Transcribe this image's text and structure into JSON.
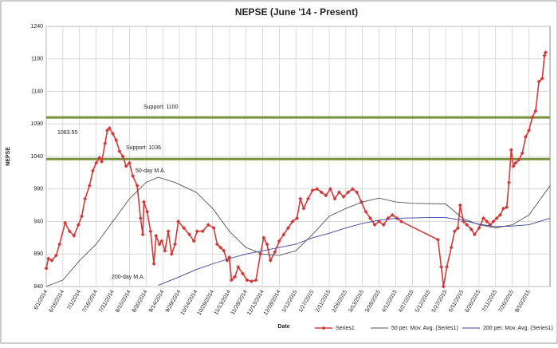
{
  "chart_data": {
    "type": "line",
    "title": "NEPSE (June '14 - Present)",
    "x_label": "Date",
    "y_label": "NEPSE",
    "xlim": [
      "6/1/2014",
      "8/29/2015"
    ],
    "xticks": [
      "6/1/2014",
      "6/16/2014",
      "7/1/2014",
      "7/16/2014",
      "7/31/2014",
      "8/15/2014",
      "8/30/2014",
      "9/14/2014",
      "9/29/2014",
      "10/14/2014",
      "10/29/2014",
      "11/13/2014",
      "11/28/2014",
      "12/13/2014",
      "12/28/2014",
      "1/12/2015",
      "1/27/2015",
      "2/11/2015",
      "2/26/2015",
      "3/13/2015",
      "3/28/2015",
      "4/12/2015",
      "4/27/2015",
      "5/12/2015",
      "5/27/2015",
      "6/11/2015",
      "6/26/2015",
      "7/11/2015",
      "7/26/2015",
      "8/10/2015"
    ],
    "ylim": [
      840,
      1240
    ],
    "yticks": [
      840,
      890,
      940,
      990,
      1040,
      1090,
      1140,
      1190,
      1240
    ],
    "grid": true,
    "legend": "bottom",
    "hlines": [
      {
        "value": 1100,
        "label": "Support: 1100",
        "color": "#76923c"
      },
      {
        "value": 1036,
        "label": "Support: 1036",
        "color": "#76923c"
      }
    ],
    "annotations": [
      "1083.55",
      "50-day M.A.",
      "200-day M.A."
    ],
    "series": [
      {
        "name": "Series1",
        "color": "#d23a3a",
        "x": [
          "6/1/2014",
          "6/3/2014",
          "6/6/2014",
          "6/10/2014",
          "6/13/2014",
          "6/18/2014",
          "6/22/2014",
          "6/26/2014",
          "6/30/2014",
          "7/3/2014",
          "7/6/2014",
          "7/10/2014",
          "7/13/2014",
          "7/16/2014",
          "7/19/2014",
          "7/21/2014",
          "7/24/2014",
          "7/26/2014",
          "7/28/2014",
          "7/31/2014",
          "8/3/2014",
          "8/6/2014",
          "8/9/2014",
          "8/12/2014",
          "8/15/2014",
          "8/18/2014",
          "8/22/2014",
          "8/25/2014",
          "8/27/2014",
          "8/28/2014",
          "8/31/2014",
          "9/3/2014",
          "9/6/2014",
          "9/8/2014",
          "9/11/2014",
          "9/13/2014",
          "9/16/2014",
          "9/19/2014",
          "9/22/2014",
          "9/25/2014",
          "9/28/2014",
          "10/3/2014",
          "10/8/2014",
          "10/12/2014",
          "10/15/2014",
          "10/20/2014",
          "10/25/2014",
          "10/30/2014",
          "11/2/2014",
          "11/5/2014",
          "11/8/2014",
          "11/11/2014",
          "11/13/2014",
          "11/15/2014",
          "11/18/2014",
          "11/21/2014",
          "11/25/2014",
          "11/29/2014",
          "12/3/2014",
          "12/7/2014",
          "12/11/2014",
          "12/14/2014",
          "12/17/2014",
          "12/20/2014",
          "12/24/2014",
          "12/28/2014",
          "1/1/2015",
          "1/5/2015",
          "1/9/2015",
          "1/13/2015",
          "1/16/2015",
          "1/19/2015",
          "1/23/2015",
          "1/27/2015",
          "1/31/2015",
          "2/4/2015",
          "2/8/2015",
          "2/12/2015",
          "2/16/2015",
          "2/20/2015",
          "2/24/2015",
          "2/28/2015",
          "3/4/2015",
          "3/8/2015",
          "3/12/2015",
          "3/16/2015",
          "3/20/2015",
          "3/24/2015",
          "3/28/2015",
          "4/1/2015",
          "4/5/2015",
          "4/9/2015",
          "4/13/2015",
          "4/17/2015",
          "5/20/2015",
          "5/23/2015",
          "5/25/2015",
          "5/28/2015",
          "6/1/2015",
          "6/4/2015",
          "6/7/2015",
          "6/9/2015",
          "6/12/2015",
          "6/15/2015",
          "6/19/2015",
          "6/22/2015",
          "6/26/2015",
          "6/30/2015",
          "7/3/2015",
          "7/6/2015",
          "7/9/2015",
          "7/12/2015",
          "7/15/2015",
          "7/18/2015",
          "7/21/2015",
          "7/23/2015",
          "7/25/2015",
          "7/27/2015",
          "7/29/2015",
          "8/1/2015",
          "8/4/2015",
          "8/7/2015",
          "8/10/2015",
          "8/13/2015",
          "8/16/2015",
          "8/19/2015",
          "8/22/2015",
          "8/24/2015",
          "8/25/2015"
        ],
        "values": [
          868,
          883,
          880,
          888,
          905,
          938,
          925,
          918,
          935,
          948,
          975,
          995,
          1018,
          1030,
          1038,
          1032,
          1060,
          1080,
          1083.55,
          1075,
          1065,
          1048,
          1040,
          1025,
          1030,
          1010,
          995,
          945,
          920,
          970,
          955,
          925,
          875,
          918,
          905,
          910,
          895,
          925,
          890,
          905,
          940,
          930,
          920,
          910,
          925,
          925,
          935,
          930,
          905,
          900,
          895,
          880,
          885,
          850,
          855,
          870,
          860,
          850,
          848,
          850,
          890,
          915,
          905,
          880,
          893,
          910,
          920,
          930,
          940,
          945,
          975,
          960,
          975,
          988,
          990,
          985,
          980,
          990,
          975,
          985,
          978,
          985,
          990,
          985,
          970,
          955,
          945,
          935,
          940,
          935,
          945,
          950,
          945,
          940,
          912,
          870,
          840,
          870,
          900,
          925,
          930,
          965,
          940,
          935,
          928,
          920,
          930,
          945,
          940,
          935,
          940,
          945,
          950,
          960,
          962,
          1000,
          1050,
          1025,
          1030,
          1035,
          1045,
          1070,
          1080,
          1100,
          1110,
          1155,
          1160,
          1195,
          1200
        ]
      },
      {
        "name": "50 per. Mov. Avg. (Series1)",
        "color": "#555555",
        "x": [
          "6/1/2014",
          "6/16/2014",
          "7/1/2014",
          "7/16/2014",
          "7/31/2014",
          "8/15/2014",
          "8/30/2014",
          "9/10/2014",
          "9/25/2014",
          "10/14/2014",
          "10/29/2014",
          "11/13/2014",
          "11/28/2014",
          "12/13/2014",
          "12/28/2014",
          "1/12/2015",
          "1/27/2015",
          "2/11/2015",
          "2/26/2015",
          "3/13/2015",
          "3/28/2015",
          "4/12/2015",
          "4/27/2015",
          "5/27/2015",
          "6/11/2015",
          "6/26/2015",
          "7/11/2015",
          "7/26/2015",
          "8/10/2015",
          "8/29/2015"
        ],
        "values": [
          840,
          850,
          880,
          905,
          940,
          975,
          1000,
          1008,
          1000,
          985,
          960,
          925,
          900,
          890,
          888,
          895,
          920,
          948,
          960,
          970,
          976,
          970,
          968,
          967,
          945,
          935,
          930,
          935,
          950,
          995
        ]
      },
      {
        "name": "200 per. Mov. Avg. (Series1)",
        "color": "#4040a0",
        "x": [
          "9/10/2014",
          "9/29/2014",
          "10/14/2014",
          "10/29/2014",
          "11/13/2014",
          "11/28/2014",
          "12/13/2014",
          "12/28/2014",
          "1/12/2015",
          "1/27/2015",
          "2/11/2015",
          "2/26/2015",
          "3/13/2015",
          "3/28/2015",
          "4/12/2015",
          "5/12/2015",
          "5/27/2015",
          "6/11/2015",
          "6/26/2015",
          "7/11/2015",
          "7/26/2015",
          "8/10/2015",
          "8/29/2015"
        ],
        "values": [
          842,
          855,
          866,
          875,
          883,
          890,
          895,
          900,
          905,
          915,
          922,
          930,
          937,
          942,
          945,
          946,
          946,
          942,
          936,
          932,
          933,
          935,
          945
        ]
      }
    ]
  }
}
